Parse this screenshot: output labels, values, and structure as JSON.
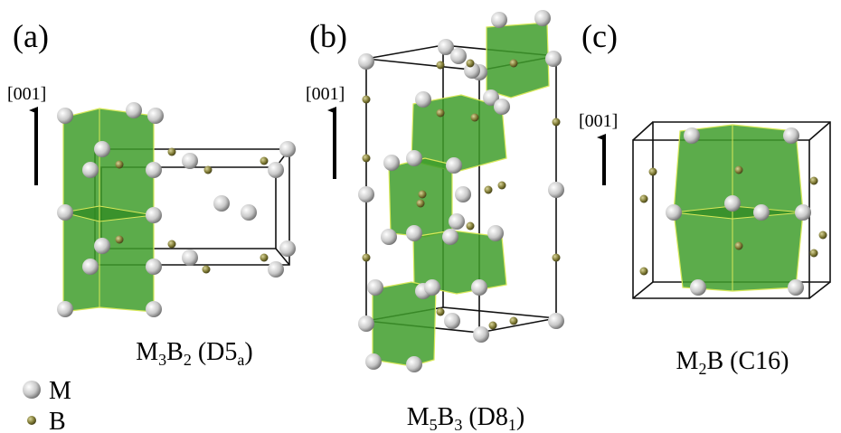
{
  "panels": [
    {
      "letter": "(a)",
      "axis": "[001]",
      "formula": [
        {
          "text": "M"
        },
        {
          "sub": "3"
        },
        {
          "text": "B"
        },
        {
          "sub": "2"
        },
        {
          "text": " (D5"
        },
        {
          "sub": "a"
        },
        {
          "text": ")"
        }
      ]
    },
    {
      "letter": "(b)",
      "axis": "[001]",
      "formula": [
        {
          "text": "M"
        },
        {
          "sub": "5"
        },
        {
          "text": "B"
        },
        {
          "sub": "3"
        },
        {
          "text": " (D8"
        },
        {
          "sub": "1"
        },
        {
          "text": ")"
        }
      ]
    },
    {
      "letter": "(c)",
      "axis": "[001]",
      "formula": [
        {
          "text": "M"
        },
        {
          "sub": "2"
        },
        {
          "text": "B (C16)"
        }
      ]
    }
  ],
  "legend": [
    {
      "label": "M"
    },
    {
      "label": "B"
    }
  ]
}
